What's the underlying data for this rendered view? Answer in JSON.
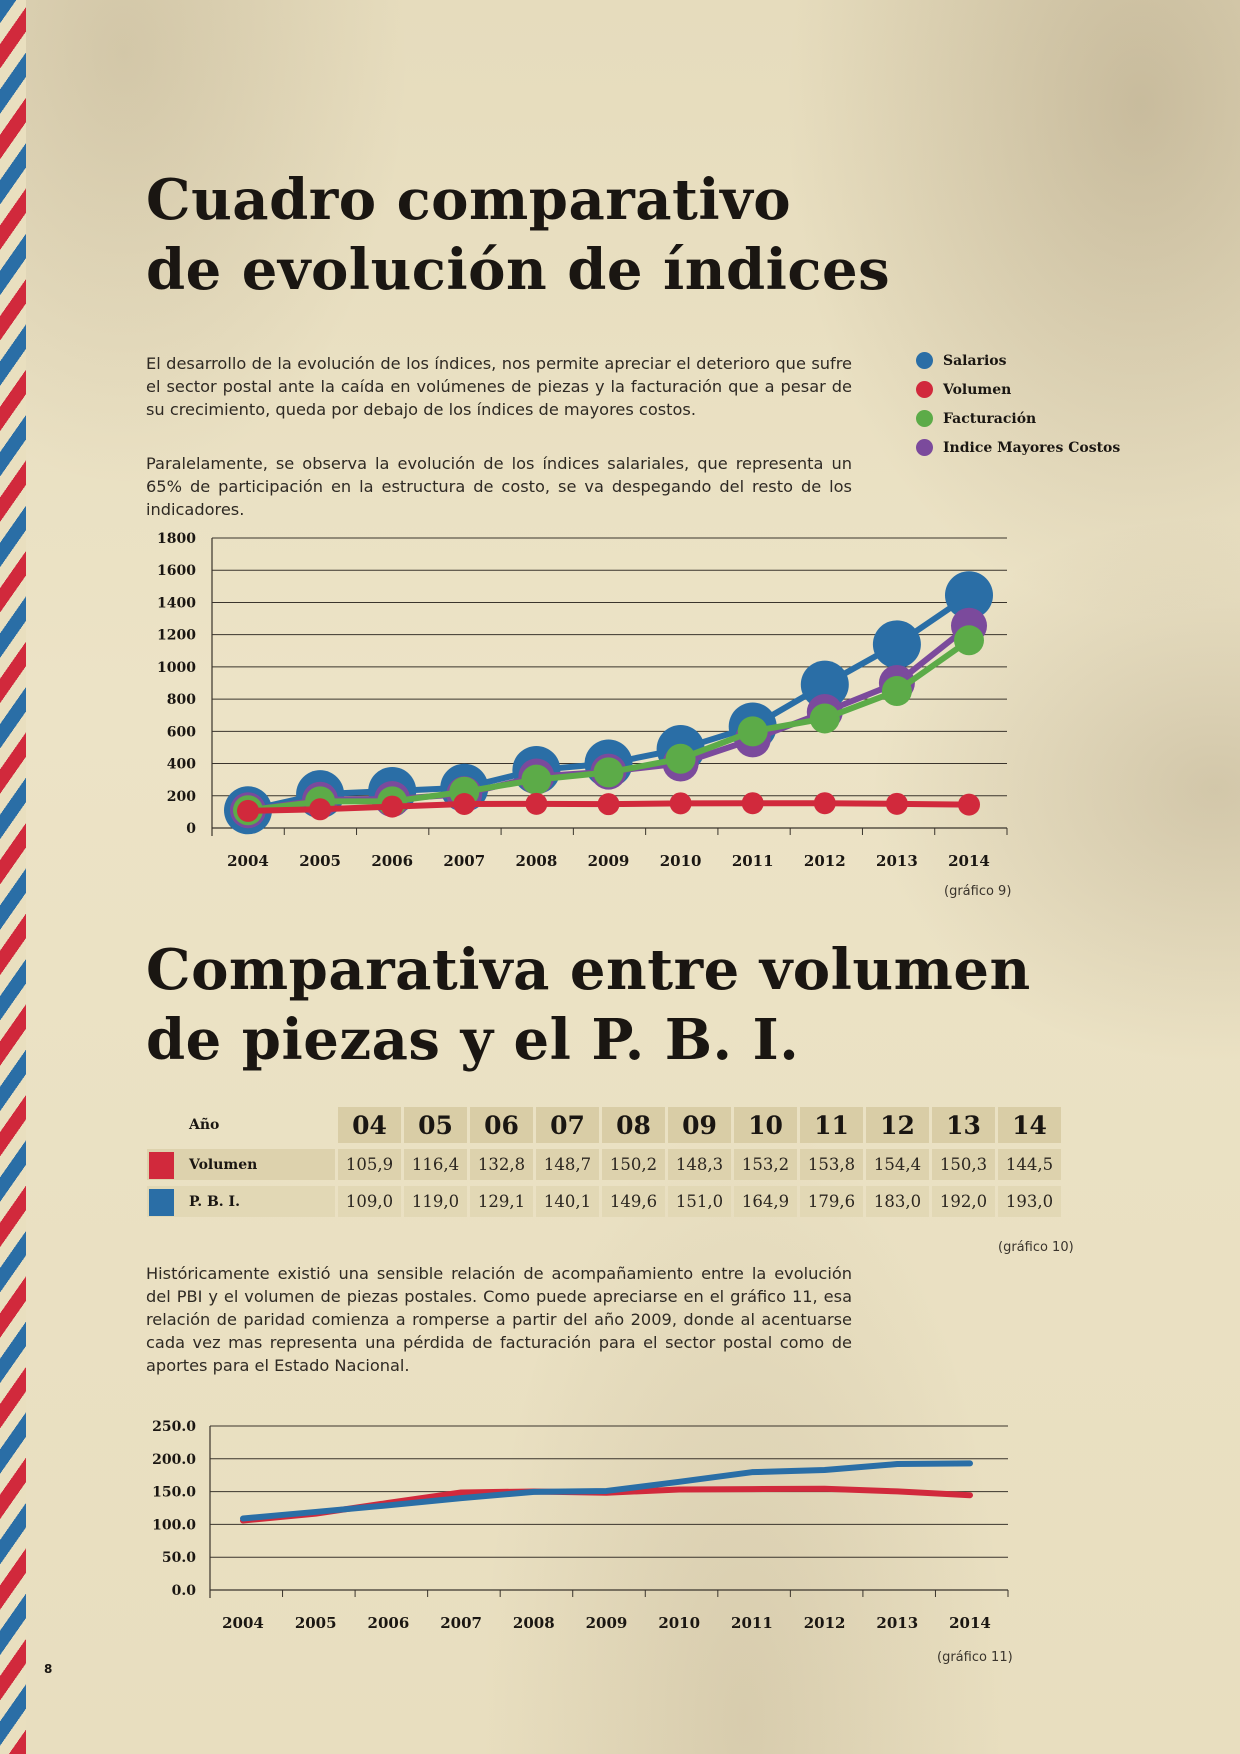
{
  "section1": {
    "title_line1": "Cuadro comparativo",
    "title_line2": "de evolución de índices",
    "paragraph1": "El desarrollo de la evolución de los índices, nos permite apreciar el deterioro que sufre el sector postal ante la caída en volúmenes de piezas y la facturación que a pesar de su crecimiento, queda por debajo de los índices de mayores costos.",
    "paragraph2": "Paralelamente, se observa la evolución de los índices salariales, que representa un 65% de participación en la estructura de costo, se va despegando del resto de los indicadores.",
    "caption": "(gráfico 9)"
  },
  "section2": {
    "title_line1": "Comparativa entre volumen",
    "title_line2": "de piezas y el P. B. I.",
    "table_caption": "(gráfico 10)",
    "paragraph": "Históricamente existió una sensible relación de acompañamiento entre la evolución del PBI y el volumen de piezas postales. Como puede apreciarse en el gráfico 11, esa relación de paridad comienza a romperse a partir del año 2009, donde al acentuarse cada vez mas representa una pérdida de facturación para el sector postal como de aportes para el Estado Nacional.",
    "caption": "(gráfico 11)"
  },
  "table": {
    "header_label": "Año",
    "years": [
      "04",
      "05",
      "06",
      "07",
      "08",
      "09",
      "10",
      "11",
      "12",
      "13",
      "14"
    ],
    "rows": [
      {
        "label": "Volumen",
        "color": "#d1293c",
        "values": [
          "105,9",
          "116,4",
          "132,8",
          "148,7",
          "150,2",
          "148,3",
          "153,2",
          "153,8",
          "154,4",
          "150,3",
          "144,5"
        ]
      },
      {
        "label": "P. B. I.",
        "color": "#2a6ea6",
        "values": [
          "109,0",
          "119,0",
          "129,1",
          "140,1",
          "149,6",
          "151,0",
          "164,9",
          "179,6",
          "183,0",
          "192,0",
          "193,0"
        ]
      }
    ]
  },
  "page_number": "8",
  "chart_data": [
    {
      "type": "line",
      "x": [
        "2004",
        "2005",
        "2006",
        "2007",
        "2008",
        "2009",
        "2010",
        "2011",
        "2012",
        "2013",
        "2014"
      ],
      "yticks": [
        "0",
        "200",
        "400",
        "600",
        "800",
        "1000",
        "1200",
        "1400",
        "1600",
        "1800"
      ],
      "ylim": [
        0,
        1800
      ],
      "grid": true,
      "legend_position": "top-right",
      "series": [
        {
          "name": "Volumen",
          "color": "#d1293c",
          "values": [
            106,
            116,
            133,
            149,
            150,
            148,
            153,
            154,
            154,
            150,
            145
          ]
        },
        {
          "name": "Facturación",
          "color": "#5cab48",
          "values": [
            110,
            165,
            165,
            225,
            300,
            345,
            430,
            600,
            680,
            850,
            1165
          ]
        },
        {
          "name": "Indice Mayores Costos",
          "color": "#7b4a9c",
          "values": [
            110,
            175,
            180,
            210,
            320,
            350,
            400,
            550,
            720,
            900,
            1255
          ]
        },
        {
          "name": "Salarios",
          "color": "#2a6ea6",
          "values": [
            110,
            210,
            230,
            250,
            360,
            400,
            490,
            630,
            890,
            1140,
            1445
          ]
        }
      ]
    },
    {
      "type": "line",
      "x": [
        "2004",
        "2005",
        "2006",
        "2007",
        "2008",
        "2009",
        "2010",
        "2011",
        "2012",
        "2013",
        "2014"
      ],
      "yticks": [
        "0.0",
        "50.0",
        "100.0",
        "150.0",
        "200.0",
        "250.0"
      ],
      "ylim": [
        0,
        250
      ],
      "grid": true,
      "series": [
        {
          "name": "Volumen",
          "color": "#d1293c",
          "values": [
            105.9,
            116.4,
            132.8,
            148.7,
            150.2,
            148.3,
            153.2,
            153.8,
            154.4,
            150.3,
            144.5
          ]
        },
        {
          "name": "P. B. I.",
          "color": "#2a6ea6",
          "values": [
            109.0,
            119.0,
            129.1,
            140.1,
            149.6,
            151.0,
            164.9,
            179.6,
            183.0,
            192.0,
            193.0
          ]
        }
      ]
    }
  ]
}
